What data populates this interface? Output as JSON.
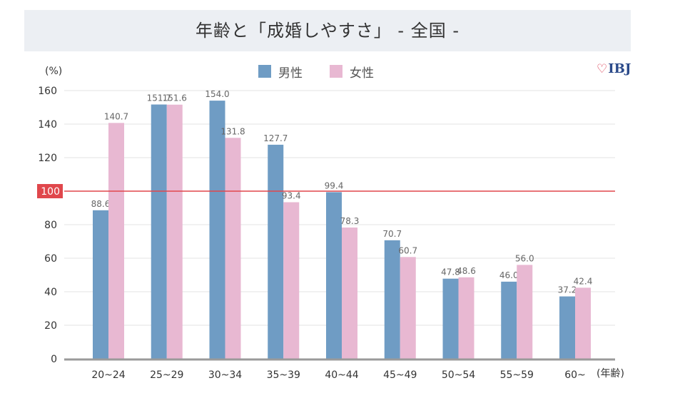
{
  "chart_data": {
    "type": "bar",
    "title": "年齢と「成婚しやすさ」 - 全国 -",
    "ylabel": "(%)",
    "xlabel": "(年齢)",
    "ylim": [
      0,
      160
    ],
    "yticks": [
      "0",
      "20",
      "40",
      "60",
      "80",
      "100",
      "120",
      "140",
      "160"
    ],
    "categories": [
      "20~24",
      "25~29",
      "30~34",
      "35~39",
      "40~44",
      "45~49",
      "50~54",
      "55~59",
      "60~"
    ],
    "series": [
      {
        "name": "男性",
        "color": "#6f9cc4",
        "values": [
          88.6,
          151.7,
          154.0,
          127.7,
          99.4,
          70.7,
          47.8,
          46.0,
          37.2
        ],
        "labels": [
          "88.6",
          "151.7",
          "154.0",
          "127.7",
          "99.4",
          "70.7",
          "47.8",
          "46.0",
          "37.2"
        ]
      },
      {
        "name": "女性",
        "color": "#e8b8d2",
        "values": [
          140.7,
          151.6,
          131.8,
          93.4,
          78.3,
          60.7,
          48.6,
          56.0,
          42.4
        ],
        "labels": [
          "140.7",
          "151.6",
          "131.8",
          "93.4",
          "78.3",
          "60.7",
          "48.6",
          "56.0",
          "42.4"
        ]
      }
    ],
    "reference_line": {
      "value": 100,
      "label": "100",
      "color": "#e0474c"
    },
    "grid": true,
    "legend": "top-center"
  },
  "brand": {
    "heart": "♡",
    "name": "IBJ"
  }
}
